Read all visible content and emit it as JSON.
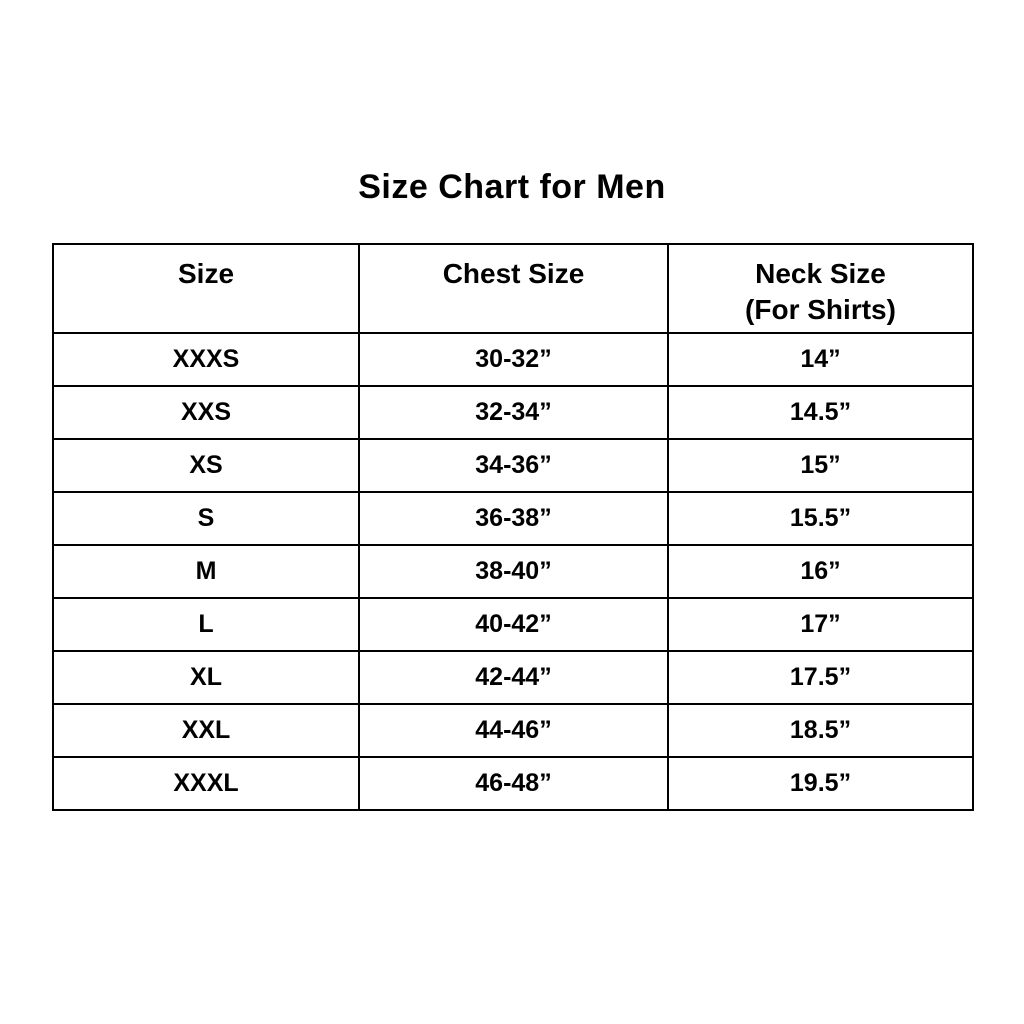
{
  "title": "Size Chart for Men",
  "table": {
    "headers": {
      "size": "Size",
      "chest": "Chest Size",
      "neck_line1": "Neck Size",
      "neck_line2": "(For Shirts)"
    },
    "rows": [
      {
        "size": "XXXS",
        "chest": "30-32”",
        "neck": "14”"
      },
      {
        "size": "XXS",
        "chest": "32-34”",
        "neck": "14.5”"
      },
      {
        "size": "XS",
        "chest": "34-36”",
        "neck": "15”"
      },
      {
        "size": "S",
        "chest": "36-38”",
        "neck": "15.5”"
      },
      {
        "size": "M",
        "chest": "38-40”",
        "neck": "16”"
      },
      {
        "size": "L",
        "chest": "40-42”",
        "neck": "17”"
      },
      {
        "size": "XL",
        "chest": "42-44”",
        "neck": "17.5”"
      },
      {
        "size": "XXL",
        "chest": "44-46”",
        "neck": "18.5”"
      },
      {
        "size": "XXXL",
        "chest": "46-48”",
        "neck": "19.5”"
      }
    ]
  },
  "colors": {
    "background": "#ffffff",
    "text": "#000000",
    "border": "#000000"
  },
  "chart_data": {
    "type": "table",
    "title": "Size Chart for Men",
    "columns": [
      "Size",
      "Chest Size",
      "Neck Size (For Shirts)"
    ],
    "rows": [
      [
        "XXXS",
        "30-32”",
        "14”"
      ],
      [
        "XXS",
        "32-34”",
        "14.5”"
      ],
      [
        "XS",
        "34-36”",
        "15”"
      ],
      [
        "S",
        "36-38”",
        "15.5”"
      ],
      [
        "M",
        "38-40”",
        "16”"
      ],
      [
        "L",
        "40-42”",
        "17”"
      ],
      [
        "XL",
        "42-44”",
        "17.5”"
      ],
      [
        "XXL",
        "44-46”",
        "18.5”"
      ],
      [
        "XXXL",
        "46-48”",
        "19.5”"
      ]
    ]
  }
}
